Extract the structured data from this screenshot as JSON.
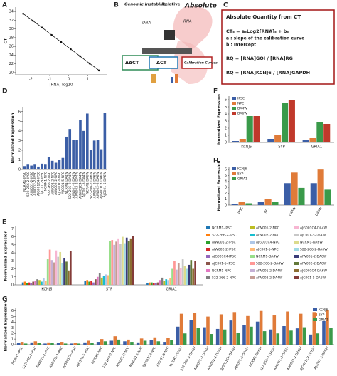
{
  "chart_data": [
    {
      "type": "line",
      "label": "A",
      "xlabel": "[RNA] log10",
      "ylabel": "CT",
      "x": [
        -2.4,
        -1.9,
        -1.4,
        -0.9,
        -0.4,
        0.1,
        0.6,
        1.1,
        1.6
      ],
      "values": [
        33.5,
        31.9,
        30.3,
        28.6,
        27.0,
        25.4,
        23.75,
        22.1,
        20.5
      ],
      "color": "#111111",
      "xlim": [
        -2.8,
        2.0
      ],
      "xticks": [
        -2,
        -1,
        0,
        1
      ],
      "ylim": [
        19.5,
        35
      ],
      "yticks": [
        20,
        22,
        24,
        26,
        28,
        30,
        32,
        34
      ]
    },
    {
      "type": "bar",
      "label": "D",
      "ylabel": "Normalized Expression",
      "color": "#3b5ea6",
      "categories": [
        "NCRM1-IPSC",
        "522-266-2-IPSC",
        "AIW001-2-IPSC",
        "AIW002-2-IPSC",
        "AJG001C4-IPSC",
        "AJC001-5-IPSC",
        "NCRM1-NPC",
        "522-266-2-NPC",
        "AIW001-2-NPC",
        "AIW002-2-NPC",
        "AJG001C4-NPC",
        "AJC001-5-NPC",
        "NCRM1-DA4W",
        "522-266-2-DA4W",
        "AIW001-2-DA4W",
        "AIW002-2-DA4W",
        "AJG001C4-DA4W",
        "AJC001-5-DA4W",
        "NCRM1-DA6W",
        "522-266-2-DA6W",
        "AIW001-2-DA6W",
        "AIW002-2-DA6W",
        "AJG001C4-DA6W",
        "AJC001-5-DA6W"
      ],
      "values": [
        0.35,
        0.5,
        0.4,
        0.5,
        0.3,
        0.6,
        0.5,
        1.3,
        0.9,
        0.7,
        1.0,
        1.2,
        3.4,
        4.2,
        3.1,
        3.1,
        5.1,
        4.0,
        5.8,
        2.0,
        3.0,
        3.1,
        2.1,
        5.9
      ],
      "ylim": [
        0,
        6.5
      ],
      "yticks": [
        0,
        1,
        2,
        3,
        4,
        5,
        6
      ]
    },
    {
      "type": "bar",
      "label": "F",
      "ylabel": "Normalized Expression",
      "legend": "upper left",
      "categories": [
        "KCNJ6",
        "SYP",
        "GRIA1"
      ],
      "series": [
        {
          "name": "IPSC",
          "color": "#3b5ea6",
          "values": [
            0.2,
            0.5,
            0.3
          ]
        },
        {
          "name": "NPC",
          "color": "#e07b39",
          "values": [
            0.5,
            1.0,
            0.6
          ]
        },
        {
          "name": "DA4W",
          "color": "#3a9a4a",
          "values": [
            3.7,
            5.5,
            2.9
          ]
        },
        {
          "name": "DA6W",
          "color": "#c0392b",
          "values": [
            3.7,
            6.0,
            2.6
          ]
        }
      ],
      "ylim": [
        0,
        6.5
      ],
      "yticks": [
        0,
        1,
        2,
        3,
        4,
        5,
        6
      ]
    },
    {
      "type": "bar",
      "label": "H",
      "ylabel": "Normalized Expression",
      "legend": "upper left",
      "categories": [
        "IPSC",
        "NPC",
        "DA4W",
        "DA6W"
      ],
      "series": [
        {
          "name": "KCNJ6",
          "color": "#3b5ea6",
          "values": [
            0.2,
            0.5,
            3.7,
            3.7
          ]
        },
        {
          "name": "SYP",
          "color": "#e07b39",
          "values": [
            0.5,
            1.0,
            5.5,
            6.0
          ]
        },
        {
          "name": "GRIA1",
          "color": "#3a9a4a",
          "values": [
            0.3,
            0.6,
            2.9,
            2.6
          ]
        }
      ],
      "ylim": [
        0,
        6.5
      ],
      "yticks": [
        0,
        1,
        2,
        3,
        4,
        5,
        6
      ]
    },
    {
      "type": "bar",
      "label": "E",
      "ylabel": "Normalized Expression",
      "legend": "right",
      "categories": [
        "KCNJ6",
        "SYP",
        "GRIA1"
      ],
      "series": [
        {
          "name": "NCRM1-IPSC",
          "color": "#1f77b4",
          "values": [
            0.3,
            0.5,
            0.2
          ]
        },
        {
          "name": "522-266-2-IPSC",
          "color": "#ff7f0e",
          "values": [
            0.4,
            0.6,
            0.3
          ]
        },
        {
          "name": "AIW001-2-IPSC",
          "color": "#2ca02c",
          "values": [
            0.2,
            0.4,
            0.3
          ]
        },
        {
          "name": "AIW002-2-IPSC",
          "color": "#d62728",
          "values": [
            0.3,
            0.5,
            0.2
          ]
        },
        {
          "name": "AJG001C4-IPSC",
          "color": "#9467bd",
          "values": [
            0.2,
            0.3,
            0.2
          ]
        },
        {
          "name": "AJC001-5-IPSC",
          "color": "#8c564b",
          "values": [
            0.4,
            0.7,
            0.3
          ]
        },
        {
          "name": "NCRM1-NPC",
          "color": "#e377c2",
          "values": [
            0.5,
            1.0,
            0.6
          ]
        },
        {
          "name": "522-266-2-NPC",
          "color": "#7f7f7f",
          "values": [
            0.7,
            1.5,
            0.9
          ]
        },
        {
          "name": "AIW001-2-NPC",
          "color": "#bcbd22",
          "values": [
            0.6,
            0.9,
            0.5
          ]
        },
        {
          "name": "AIW002-2-NPC",
          "color": "#17becf",
          "values": [
            0.4,
            1.1,
            0.7
          ]
        },
        {
          "name": "AJG001C4-NPC",
          "color": "#aec7e8",
          "values": [
            0.8,
            1.3,
            0.6
          ]
        },
        {
          "name": "AJC001-5-NPC",
          "color": "#ffbb78",
          "values": [
            0.5,
            1.2,
            0.8
          ]
        },
        {
          "name": "NCRM1-DA4W",
          "color": "#98df8a",
          "values": [
            3.2,
            5.5,
            2.0
          ]
        },
        {
          "name": "522-266-2-DA4W",
          "color": "#ff9896",
          "values": [
            4.4,
            5.6,
            3.0
          ]
        },
        {
          "name": "AIW001-2-DA4W",
          "color": "#c5b0d5",
          "values": [
            3.1,
            5.0,
            1.9
          ]
        },
        {
          "name": "AIW002-2-DA4W",
          "color": "#c49c94",
          "values": [
            2.8,
            5.4,
            2.7
          ]
        },
        {
          "name": "AJG001C4-DA4W",
          "color": "#f7b6d2",
          "values": [
            4.3,
            5.8,
            2.1
          ]
        },
        {
          "name": "AJC001-5-DA4W",
          "color": "#c7c7c7",
          "values": [
            3.5,
            5.1,
            3.2
          ]
        },
        {
          "name": "NCRM1-DA6W",
          "color": "#dbdb8d",
          "values": [
            4.1,
            6.0,
            2.4
          ]
        },
        {
          "name": "522-266-2-DA6W",
          "color": "#9edae5",
          "values": [
            2.7,
            5.2,
            2.0
          ]
        },
        {
          "name": "AIW001-2-DA6W",
          "color": "#393b79",
          "values": [
            3.3,
            5.9,
            2.5
          ]
        },
        {
          "name": "AIW002-2-DA6W",
          "color": "#637939",
          "values": [
            2.9,
            5.5,
            3.1
          ]
        },
        {
          "name": "AJG001C4-DA6W",
          "color": "#8c6d31",
          "values": [
            1.8,
            5.8,
            2.0
          ]
        },
        {
          "name": "AJC001-5-DA6W",
          "color": "#843c39",
          "values": [
            4.2,
            6.1,
            3.0
          ]
        }
      ],
      "ylim": [
        0,
        7.3
      ],
      "yticks": [
        0,
        1,
        2,
        3,
        4,
        5,
        6,
        7
      ]
    },
    {
      "type": "bar",
      "label": "G",
      "ylabel": "Normalized Expression",
      "legend": "upper right",
      "categories": [
        "NCRM1-IPSC",
        "522-266-2-IPSC",
        "AIW001-2-IPSC",
        "AIW002-2-IPSC",
        "AJG001C4-IPSC",
        "AJC001-5-IPSC",
        "NCRM1-NPC",
        "522-266-2-NPC",
        "AIW001-2-NPC",
        "AIW002-2-NPC",
        "AJG001C4-NPC",
        "AJC001-5-NPC",
        "NCRM1-DA4W",
        "522-266-2-DA4W",
        "AIW001-2-DA4W",
        "AIW002-2-DA4W",
        "AJG001C4-DA4W",
        "AJC001-5-DA4W",
        "NCRM1-DA6W",
        "522-266-2-DA6W",
        "AIW001-2-DA6W",
        "AIW002-2-DA6W",
        "AJG001C4-DA6W",
        "AJC001-5-DA6W"
      ],
      "series": [
        {
          "name": "KCNJ6",
          "color": "#3b5ea6",
          "values": [
            0.3,
            0.4,
            0.2,
            0.3,
            0.2,
            0.4,
            0.5,
            0.7,
            0.6,
            0.4,
            0.8,
            0.5,
            3.2,
            4.4,
            3.1,
            2.8,
            4.3,
            3.5,
            4.1,
            2.7,
            3.3,
            2.9,
            1.8,
            4.2
          ]
        },
        {
          "name": "SYP",
          "color": "#e07b39",
          "values": [
            0.5,
            0.6,
            0.4,
            0.5,
            0.3,
            0.7,
            1.0,
            1.5,
            0.9,
            1.1,
            1.3,
            1.2,
            5.5,
            5.6,
            5.0,
            5.4,
            5.8,
            5.1,
            6.0,
            5.2,
            5.9,
            5.5,
            5.8,
            6.1
          ]
        },
        {
          "name": "GRIA1",
          "color": "#3a9a4a",
          "values": [
            0.2,
            0.3,
            0.3,
            0.2,
            0.2,
            0.3,
            0.6,
            0.9,
            0.5,
            0.7,
            0.6,
            0.8,
            2.0,
            3.0,
            1.9,
            2.7,
            2.1,
            3.2,
            2.4,
            2.0,
            2.5,
            3.1,
            2.0,
            3.0
          ]
        }
      ],
      "ylim": [
        0,
        6.6
      ],
      "yticks": [
        0,
        1,
        2,
        3,
        4,
        5,
        6
      ]
    }
  ],
  "diagram": {
    "label": "B",
    "labels": [
      "Genomic Instability",
      "Relative",
      "Absolute",
      "DNA",
      "RNA",
      "ΔΔCT",
      "ΔCT",
      "Calibration Curves"
    ]
  },
  "text_panel": {
    "label": "C",
    "title": "Absolute Quantity from CT",
    "lines": [
      "CTₓ = aₓLog2[RNA]ₓ + bₓ",
      "a : slope of the calibration curve",
      "b : Intercept",
      "RQ = [RNA]GOI / [RNA]RG",
      "RQ = [RNA]KCNJ6 / [RNA]GAPDH"
    ]
  }
}
